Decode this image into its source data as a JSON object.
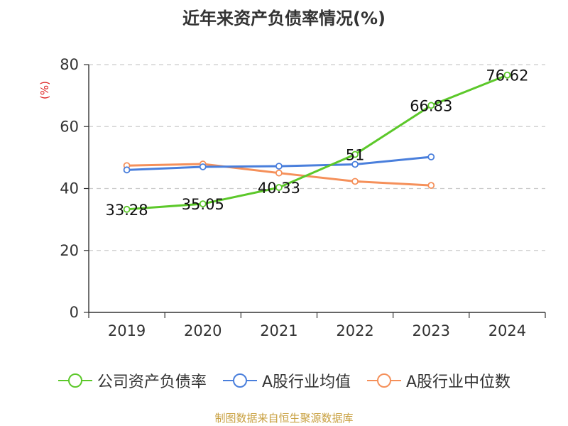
{
  "chart_data": {
    "type": "line",
    "title": "近年来资产负债率情况(%)",
    "ylabel": "(%)",
    "ylim": [
      0,
      80
    ],
    "yticks": [
      0,
      20,
      40,
      60,
      80
    ],
    "grid": true,
    "legend_position": "bottom",
    "categories": [
      "2019",
      "2020",
      "2021",
      "2022",
      "2023",
      "2024"
    ],
    "series": [
      {
        "name": "公司资产负债率",
        "color": "#5cc82a",
        "values": [
          33.28,
          35.05,
          40.33,
          51,
          66.83,
          76.62
        ],
        "labels": [
          "33.28",
          "35.05",
          "40.33",
          "51",
          "66.83",
          "76.62"
        ]
      },
      {
        "name": "A股行业均值",
        "color": "#4a7fdc",
        "values": [
          46,
          47,
          47.2,
          47.8,
          50.2,
          null
        ]
      },
      {
        "name": "A股行业中位数",
        "color": "#f5905a",
        "values": [
          47.4,
          47.9,
          45,
          42.3,
          41,
          null
        ]
      }
    ]
  },
  "source_note": "制图数据来自恒生聚源数据库"
}
